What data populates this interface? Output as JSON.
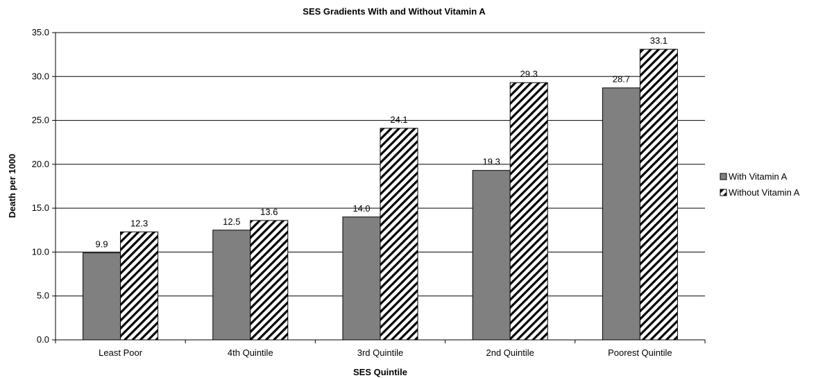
{
  "chart_data": {
    "type": "bar",
    "title": "SES Gradients With and Without Vitamin A",
    "xlabel": "SES Quintile",
    "ylabel": "Death per 1000",
    "categories": [
      "Least Poor",
      "4th Quintile",
      "3rd Quintile",
      "2nd Quintile",
      "Poorest Quintile"
    ],
    "series": [
      {
        "name": "With Vitamin A",
        "values": [
          9.9,
          12.5,
          14.0,
          19.3,
          28.7
        ],
        "labels": [
          "9.9",
          "12.5",
          "14.0",
          "19.3",
          "28.7"
        ],
        "fill": "solid",
        "color": "#808080"
      },
      {
        "name": "Without Vitamin A",
        "values": [
          12.3,
          13.6,
          24.1,
          29.3,
          33.1
        ],
        "labels": [
          "12.3",
          "13.6",
          "24.1",
          "29.3",
          "33.1"
        ],
        "fill": "hatched",
        "color": "#000000"
      }
    ],
    "ylim": [
      0,
      35
    ],
    "yticks": [
      "0.0",
      "5.0",
      "10.0",
      "15.0",
      "20.0",
      "25.0",
      "30.0",
      "35.0"
    ],
    "grid": true,
    "legend_position": "right"
  }
}
